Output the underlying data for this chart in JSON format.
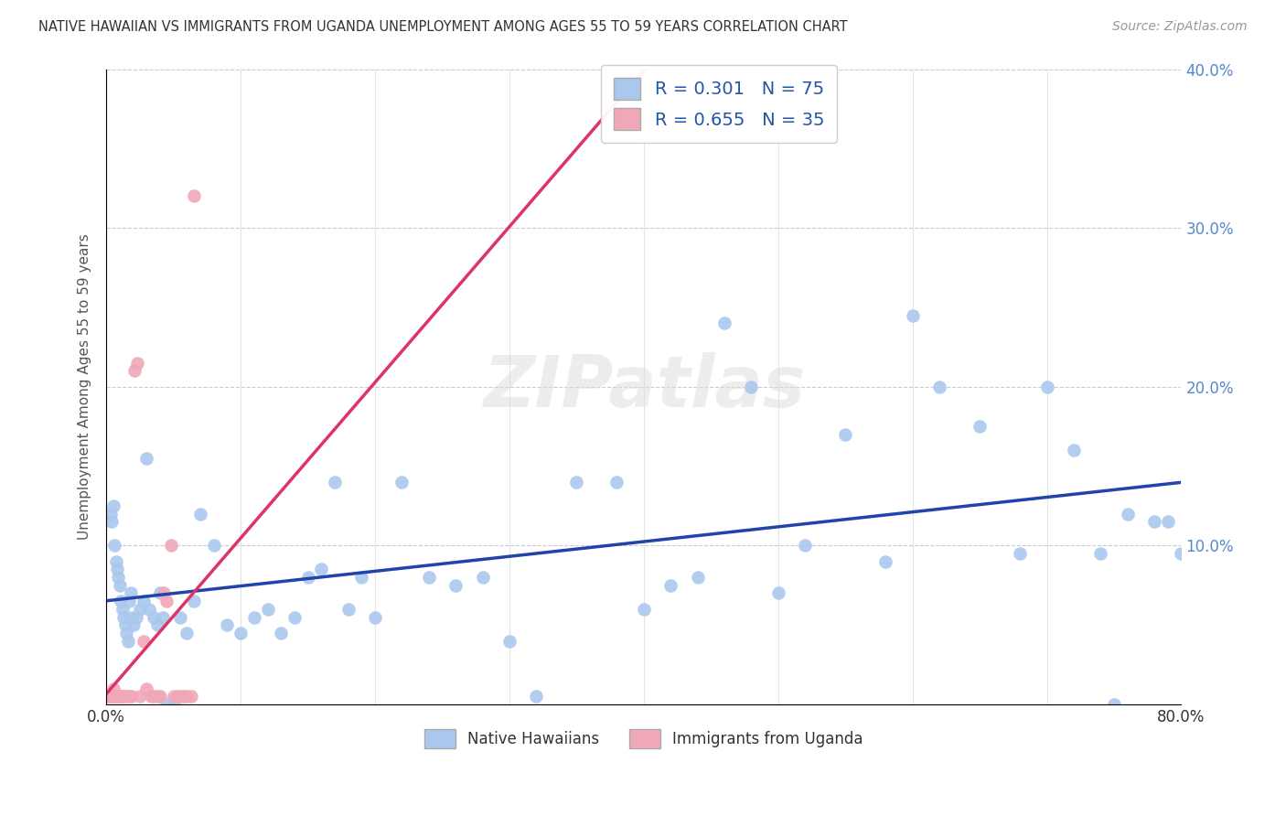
{
  "title": "NATIVE HAWAIIAN VS IMMIGRANTS FROM UGANDA UNEMPLOYMENT AMONG AGES 55 TO 59 YEARS CORRELATION CHART",
  "source": "Source: ZipAtlas.com",
  "ylabel": "Unemployment Among Ages 55 to 59 years",
  "xlim": [
    0,
    0.8
  ],
  "ylim": [
    0,
    0.4
  ],
  "legend_label1": "Native Hawaiians",
  "legend_label2": "Immigrants from Uganda",
  "blue_color": "#aac8ee",
  "pink_color": "#f0a8b8",
  "blue_line_color": "#2244aa",
  "pink_line_color": "#dd3366",
  "R1": 0.301,
  "N1": 75,
  "R2": 0.655,
  "N2": 35,
  "watermark": "ZIPatlas",
  "blue_x": [
    0.003,
    0.004,
    0.005,
    0.006,
    0.007,
    0.008,
    0.009,
    0.01,
    0.011,
    0.012,
    0.013,
    0.014,
    0.015,
    0.016,
    0.017,
    0.018,
    0.019,
    0.02,
    0.022,
    0.025,
    0.028,
    0.03,
    0.032,
    0.035,
    0.038,
    0.04,
    0.042,
    0.045,
    0.05,
    0.055,
    0.06,
    0.065,
    0.07,
    0.08,
    0.09,
    0.1,
    0.11,
    0.12,
    0.13,
    0.14,
    0.15,
    0.16,
    0.17,
    0.18,
    0.19,
    0.2,
    0.22,
    0.24,
    0.26,
    0.28,
    0.3,
    0.32,
    0.35,
    0.38,
    0.4,
    0.42,
    0.44,
    0.46,
    0.48,
    0.5,
    0.52,
    0.55,
    0.58,
    0.6,
    0.62,
    0.65,
    0.68,
    0.7,
    0.72,
    0.74,
    0.75,
    0.76,
    0.78,
    0.79,
    0.8
  ],
  "blue_y": [
    0.12,
    0.115,
    0.125,
    0.1,
    0.09,
    0.085,
    0.08,
    0.075,
    0.065,
    0.06,
    0.055,
    0.05,
    0.045,
    0.04,
    0.065,
    0.07,
    0.055,
    0.05,
    0.055,
    0.06,
    0.065,
    0.155,
    0.06,
    0.055,
    0.05,
    0.07,
    0.055,
    0.0,
    0.0,
    0.055,
    0.045,
    0.065,
    0.12,
    0.1,
    0.05,
    0.045,
    0.055,
    0.06,
    0.045,
    0.055,
    0.08,
    0.085,
    0.14,
    0.06,
    0.08,
    0.055,
    0.14,
    0.08,
    0.075,
    0.08,
    0.04,
    0.005,
    0.14,
    0.14,
    0.06,
    0.075,
    0.08,
    0.24,
    0.2,
    0.07,
    0.1,
    0.17,
    0.09,
    0.245,
    0.2,
    0.175,
    0.095,
    0.2,
    0.16,
    0.095,
    0.0,
    0.12,
    0.115,
    0.115,
    0.095
  ],
  "pink_x": [
    0.001,
    0.002,
    0.003,
    0.004,
    0.005,
    0.006,
    0.007,
    0.008,
    0.009,
    0.01,
    0.011,
    0.012,
    0.013,
    0.015,
    0.017,
    0.019,
    0.021,
    0.023,
    0.025,
    0.028,
    0.03,
    0.033,
    0.035,
    0.038,
    0.04,
    0.043,
    0.045,
    0.048,
    0.05,
    0.053,
    0.055,
    0.058,
    0.06,
    0.063,
    0.065
  ],
  "pink_y": [
    0.005,
    0.005,
    0.005,
    0.005,
    0.01,
    0.005,
    0.005,
    0.005,
    0.005,
    0.005,
    0.005,
    0.005,
    0.005,
    0.005,
    0.005,
    0.005,
    0.21,
    0.215,
    0.005,
    0.04,
    0.01,
    0.005,
    0.005,
    0.005,
    0.005,
    0.07,
    0.065,
    0.1,
    0.005,
    0.005,
    0.005,
    0.005,
    0.005,
    0.005,
    0.32
  ],
  "pink_slope": 4.5,
  "pink_intercept": -0.02,
  "blue_slope": 0.145,
  "blue_intercept": 0.02
}
